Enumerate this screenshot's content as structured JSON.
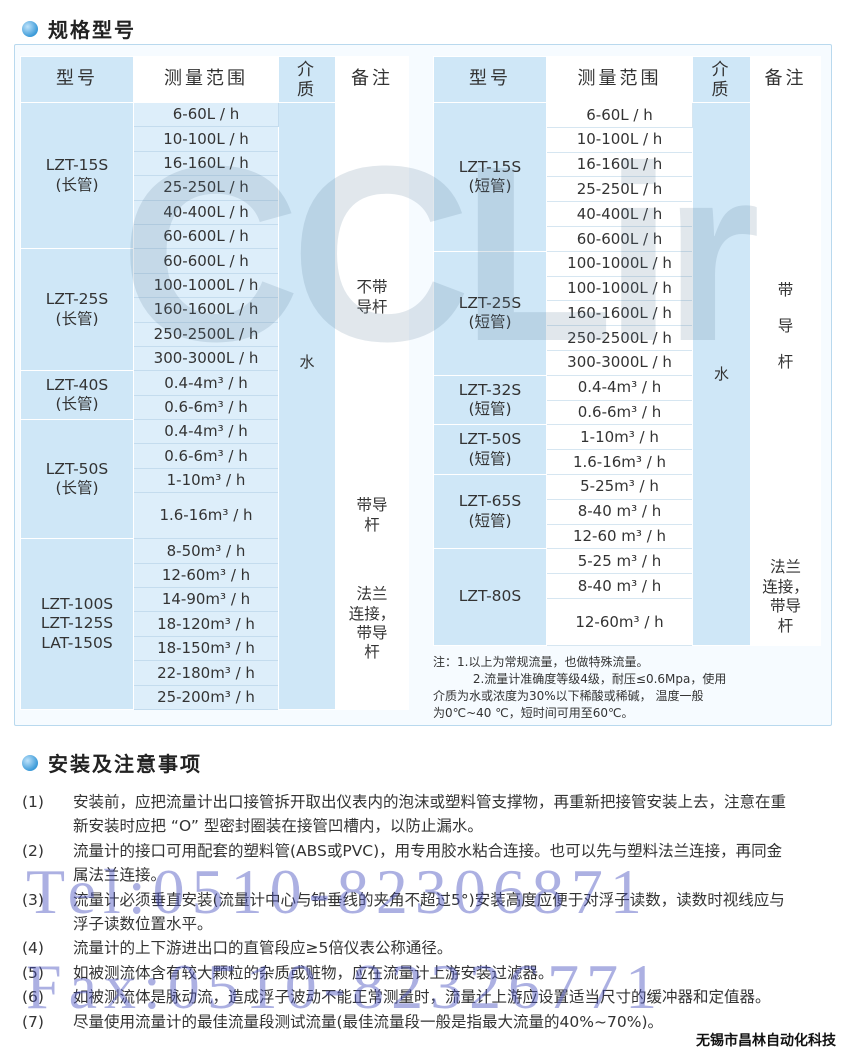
{
  "section1": {
    "title": "规格型号",
    "icon": "blue-circle-bullet"
  },
  "section2": {
    "title": "安装及注意事项",
    "icon": "blue-circle-bullet"
  },
  "watermarks": {
    "logo": "CCLir",
    "tel": "Tel:0510-82306871",
    "fax": "Fax:0510-82326771"
  },
  "headers": {
    "model": "型号",
    "range": "测量范围",
    "medium": "介质",
    "note": "备注"
  },
  "left_table": {
    "medium": "水",
    "groups": [
      {
        "model": [
          "LZT-15S",
          "(长管)"
        ],
        "ranges": [
          "6-60L / h",
          "10-100L / h",
          "16-160L / h",
          "25-250L / h",
          "40-400L / h",
          "60-600L / h"
        ]
      },
      {
        "model": [
          "LZT-25S",
          "(长管)"
        ],
        "ranges": [
          "60-600L / h",
          "100-1000L / h",
          "160-1600L / h",
          "250-2500L / h",
          "300-3000L / h"
        ]
      },
      {
        "model": [
          "LZT-40S",
          "(长管)"
        ],
        "ranges": [
          "0.4-4m³ / h",
          "0.6-6m³ / h"
        ]
      },
      {
        "model": [
          "LZT-50S",
          "(长管)"
        ],
        "ranges": [
          "0.4-4m³ / h",
          "0.6-6m³ / h",
          "1-10m³ / h",
          "1.6-16m³ / h"
        ]
      },
      {
        "model": [
          "LZT-100S",
          "LZT-125S",
          "LAT-150S"
        ],
        "ranges": [
          "8-50m³ / h",
          "12-60m³ / h",
          "14-90m³ / h",
          "18-120m³ / h",
          "18-150m³ / h",
          "22-180m³ / h",
          "25-200m³ / h"
        ]
      }
    ],
    "notes": [
      {
        "text": [
          "不带",
          "导杆"
        ],
        "rows": 16
      },
      {
        "text": [
          "带导",
          "杆"
        ],
        "rows": 1
      },
      {
        "text": [
          "法兰",
          "连接，",
          "带导",
          "杆"
        ],
        "rows": 7
      }
    ]
  },
  "right_table": {
    "medium": "水",
    "groups": [
      {
        "model": [
          "LZT-15S",
          "(短管)"
        ],
        "ranges": [
          "6-60L / h",
          "10-100L / h",
          "16-160L / h",
          "25-250L / h",
          "40-400L / h",
          "60-600L / h"
        ]
      },
      {
        "model": [
          "LZT-25S",
          "(短管)"
        ],
        "ranges": [
          "100-1000L / h",
          "100-1000L / h",
          "160-1600L / h",
          "250-2500L / h",
          "300-3000L / h"
        ]
      },
      {
        "model": [
          "LZT-32S",
          "(短管)"
        ],
        "ranges": [
          "0.4-4m³ / h",
          "0.6-6m³ / h"
        ]
      },
      {
        "model": [
          "LZT-50S",
          "(短管)"
        ],
        "ranges": [
          "1-10m³ / h",
          "1.6-16m³ / h"
        ]
      },
      {
        "model": [
          "LZT-65S",
          "(短管)"
        ],
        "ranges": [
          "5-25m³ / h",
          "8-40 m³ / h",
          "12-60 m³ / h"
        ]
      },
      {
        "model": [
          "LZT-80S"
        ],
        "ranges": [
          "5-25 m³ / h",
          "8-40 m³ / h",
          "12-60m³ / h"
        ]
      }
    ],
    "notes": [
      {
        "text": [
          "带",
          "导",
          "杆"
        ],
        "rows": 18
      },
      {
        "text": [
          "法兰",
          "连接，",
          "带导",
          "杆"
        ],
        "rows": 3
      }
    ]
  },
  "table_notes": [
    "注：1.以上为常规流量，也做特殊流量。",
    "　　　 2.流量计准确度等级4级，耐压≤0.6Mpa，使用",
    "介质为水或浓度为30%以下稀酸或稀碱， 温度一般",
    "为0℃~40 ℃，短时间可用至60℃。"
  ],
  "steps": [
    {
      "num": "(1)",
      "text": "安装前，应把流量计出口接管拆开取出仪表内的泡沫或塑料管支撑物，再重新把接管安装上去，注意在重新安装时应把 “O” 型密封圈装在接管凹槽内，以防止漏水。"
    },
    {
      "num": "(2)",
      "text": "流量计的接口可用配套的塑料管(ABS或PVC)，用专用胶水粘合连接。也可以先与塑料法兰连接，再同金属法兰连接。"
    },
    {
      "num": "(3)",
      "text": "流量计必须垂直安装(流量计中心与铅垂线的夹角不超过5°)安装高度应便于对浮子读数，读数时视线应与浮子读数位置水平。"
    },
    {
      "num": "(4)",
      "text": "流量计的上下游进出口的直管段应≥5倍仪表公称通径。"
    },
    {
      "num": "(5)",
      "text": "如被测流体含有较大颗粒的杂质或赃物，应在流量计上游安装过滤器。"
    },
    {
      "num": "(6)",
      "text": "如被测流体是脉动流，造成浮子波动不能正常测量时，流量计上游应设置适当尺寸的缓冲器和定值器。"
    },
    {
      "num": "(7)",
      "text": "尽量使用流量计的最佳流量段测试流量(最佳流量段一般是指最大流量的40%~70%)。"
    }
  ],
  "footer": "无锡市昌林自动化科技"
}
